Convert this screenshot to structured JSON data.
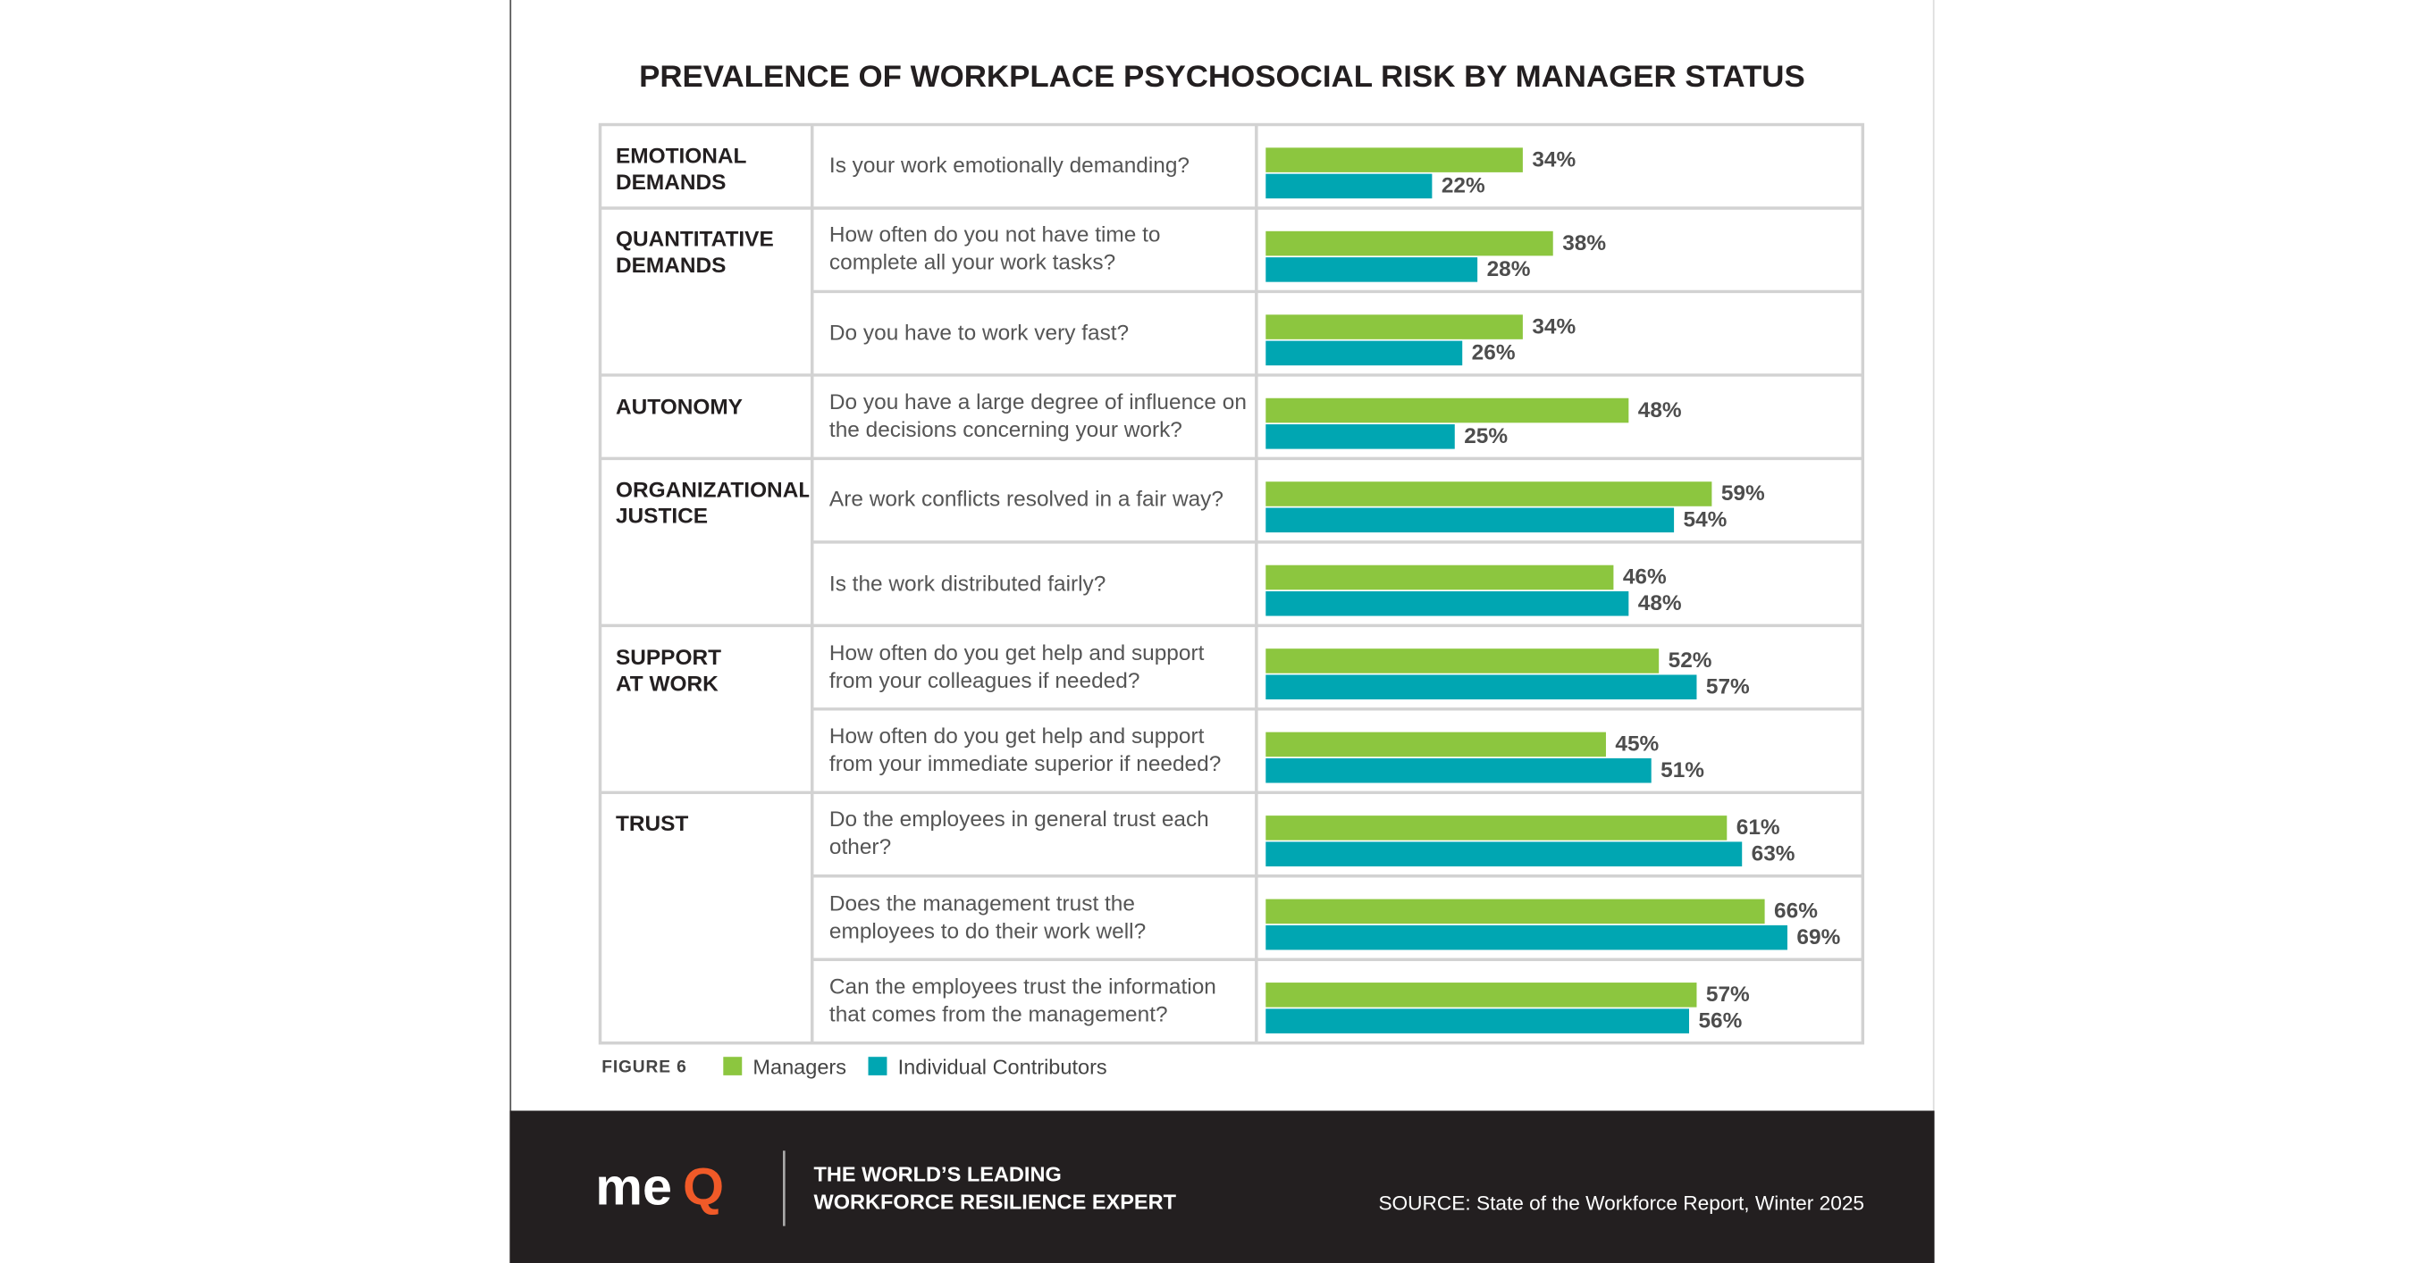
{
  "chart_data": {
    "type": "hbar",
    "title": "PREVALENCE OF WORKPLACE PSYCHOSOCIAL RISK BY MANAGER STATUS",
    "group_labels": [
      "EMOTIONAL\nDEMANDS",
      "QUANTITATIVE\nDEMANDS",
      null,
      "AUTONOMY",
      "ORGANIZATIONAL\nJUSTICE",
      null,
      "SUPPORT\nAT WORK",
      null,
      "TRUST",
      null,
      null
    ],
    "categories": [
      "Is your work emotionally demanding?",
      "How often do you not have time to\ncomplete all your work tasks?",
      "Do you have to work very fast?",
      "Do you have a large degree of influence on\nthe decisions concerning your work?",
      "Are work conflicts resolved in a fair way?",
      "Is the work distributed fairly?",
      "How often do you get help and support\nfrom your colleagues if needed?",
      "How often do you get help and support\nfrom your immediate superior if needed?",
      "Do the employees in general trust each\nother?",
      "Does the management trust the\nemployees to do their work well?",
      "Can the employees trust the information\nthat comes from the management?"
    ],
    "series": [
      {
        "name": "Managers",
        "color": "#8cc63f",
        "values": [
          34,
          38,
          34,
          48,
          59,
          46,
          52,
          45,
          61,
          66,
          57
        ],
        "value_labels": [
          "34%",
          "38%",
          "34%",
          "48%",
          "59%",
          "46%",
          "52%",
          "45%",
          "61%",
          "66%",
          "57%"
        ]
      },
      {
        "name": "Individual Contributors",
        "color": "#00a6b2",
        "values": [
          22,
          28,
          26,
          25,
          54,
          48,
          57,
          51,
          63,
          69,
          56
        ],
        "value_labels": [
          "22%",
          "28%",
          "26%",
          "25%",
          "54%",
          "48%",
          "57%",
          "51%",
          "63%",
          "69%",
          "56%"
        ]
      }
    ],
    "figure_label": "FIGURE 6"
  },
  "footer": {
    "logo_text": "me",
    "logo_accent": "Q",
    "tagline": "THE WORLD’S LEADING\nWORKFORCE RESILIENCE EXPERT",
    "source": "SOURCE: State of the Workforce Report,  Winter 2025"
  }
}
